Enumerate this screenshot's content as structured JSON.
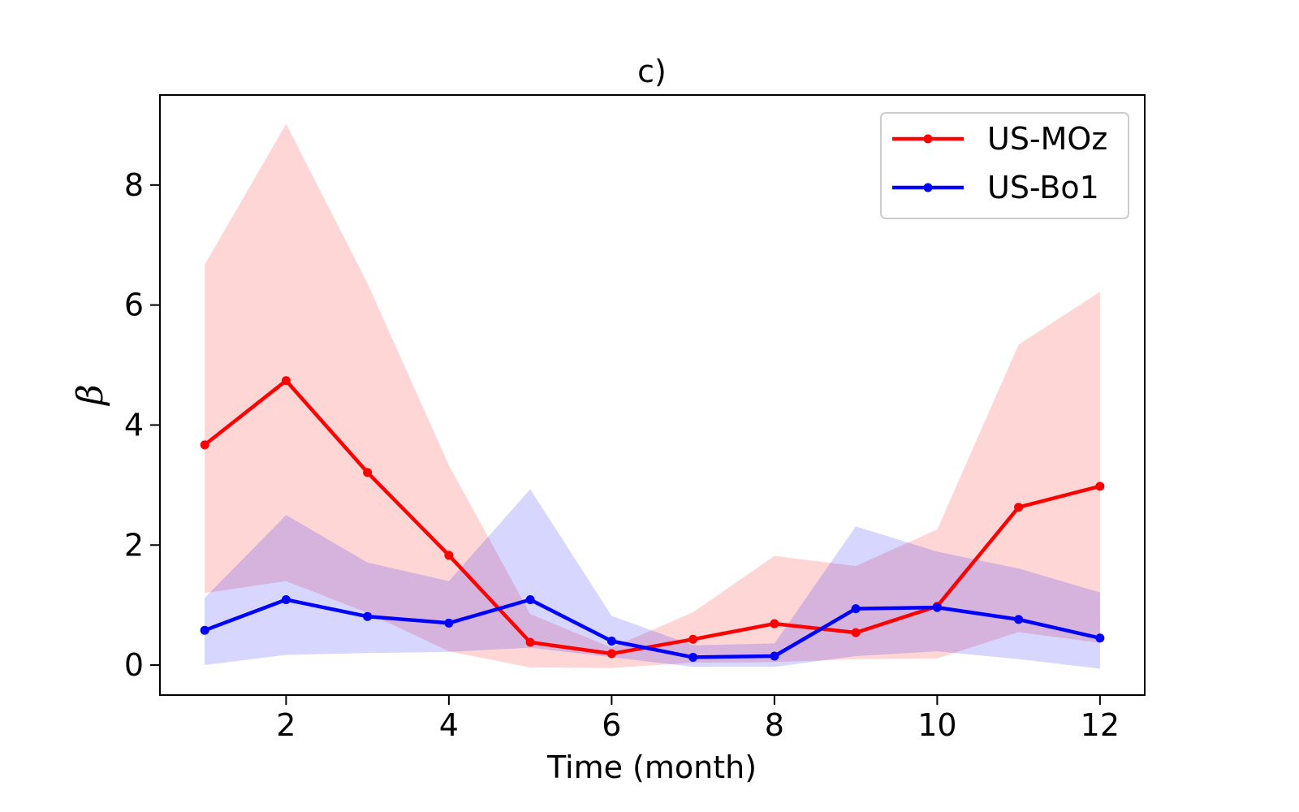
{
  "chart_data": {
    "type": "line",
    "title": "c)",
    "xlabel": "Time (month)",
    "ylabel": "β",
    "xlim": [
      0.45,
      12.55
    ],
    "ylim": [
      -0.5,
      9.5
    ],
    "xticks": [
      2,
      4,
      6,
      8,
      10,
      12
    ],
    "yticks": [
      0,
      2,
      4,
      6,
      8
    ],
    "grid": false,
    "legend": "top-right",
    "x": [
      1,
      2,
      3,
      4,
      5,
      6,
      7,
      8,
      9,
      10,
      11,
      12
    ],
    "series": [
      {
        "name": "US-MOz",
        "color": "#ff0000",
        "band_color": "#ffd5d5",
        "values": [
          3.67,
          4.74,
          3.21,
          1.83,
          0.38,
          0.19,
          0.43,
          0.69,
          0.54,
          0.98,
          2.63,
          2.98
        ],
        "upper": [
          6.67,
          9.02,
          6.36,
          3.33,
          0.85,
          0.29,
          0.88,
          1.82,
          1.65,
          2.26,
          5.34,
          6.22
        ],
        "lower": [
          1.2,
          1.4,
          0.87,
          0.23,
          -0.04,
          -0.05,
          0.04,
          0.05,
          0.1,
          0.11,
          0.55,
          0.37
        ]
      },
      {
        "name": "US-Bo1",
        "color": "#0000ff",
        "band_color": "#d8d8ff",
        "values": [
          0.58,
          1.09,
          0.81,
          0.7,
          1.09,
          0.4,
          0.13,
          0.15,
          0.94,
          0.96,
          0.76,
          0.45
        ],
        "upper": [
          1.12,
          2.5,
          1.71,
          1.4,
          2.93,
          0.82,
          0.33,
          0.36,
          2.31,
          1.89,
          1.61,
          1.21
        ],
        "lower": [
          0.0,
          0.17,
          0.2,
          0.22,
          0.29,
          0.13,
          -0.03,
          -0.03,
          0.15,
          0.23,
          0.1,
          -0.06
        ]
      }
    ]
  }
}
